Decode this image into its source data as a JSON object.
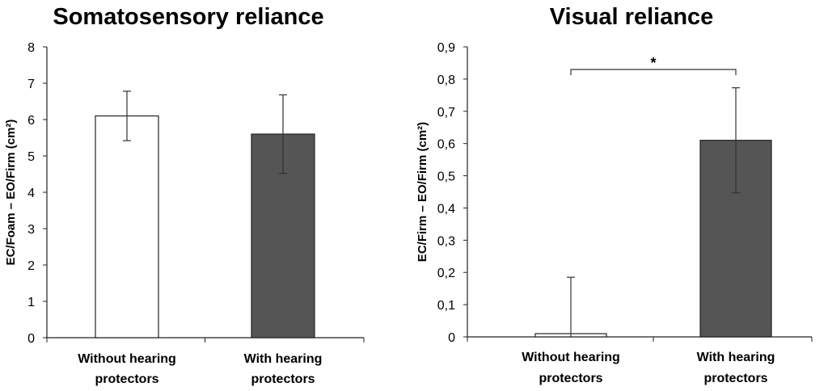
{
  "chart_data": [
    {
      "type": "bar",
      "title": "Somatosensory reliance",
      "ylabel": "EC/Foam – EO/Firm (cm²)",
      "ylim": [
        0,
        8
      ],
      "yticks": [
        "0",
        "1",
        "2",
        "3",
        "4",
        "5",
        "6",
        "7",
        "8"
      ],
      "categories": [
        [
          "Without hearing",
          "protectors"
        ],
        [
          "With hearing",
          "protectors"
        ]
      ],
      "values": [
        6.1,
        5.6
      ],
      "error": [
        0.68,
        1.08
      ],
      "colors": [
        "#ffffff",
        "#555555"
      ],
      "significance": ""
    },
    {
      "type": "bar",
      "title": "Visual reliance",
      "ylabel": "EC/Firm – EO/Firm (cm²)",
      "ylim": [
        0,
        0.9
      ],
      "yticks": [
        "0",
        "0,1",
        "0,2",
        "0,3",
        "0,4",
        "0,5",
        "0,6",
        "0,7",
        "0,8",
        "0,9"
      ],
      "categories": [
        [
          "Without hearing",
          "protectors"
        ],
        [
          "With hearing",
          "protectors"
        ]
      ],
      "values": [
        0.01,
        0.61
      ],
      "error": [
        0.175,
        0.163
      ],
      "colors": [
        "#ffffff",
        "#555555"
      ],
      "significance": "*"
    }
  ]
}
